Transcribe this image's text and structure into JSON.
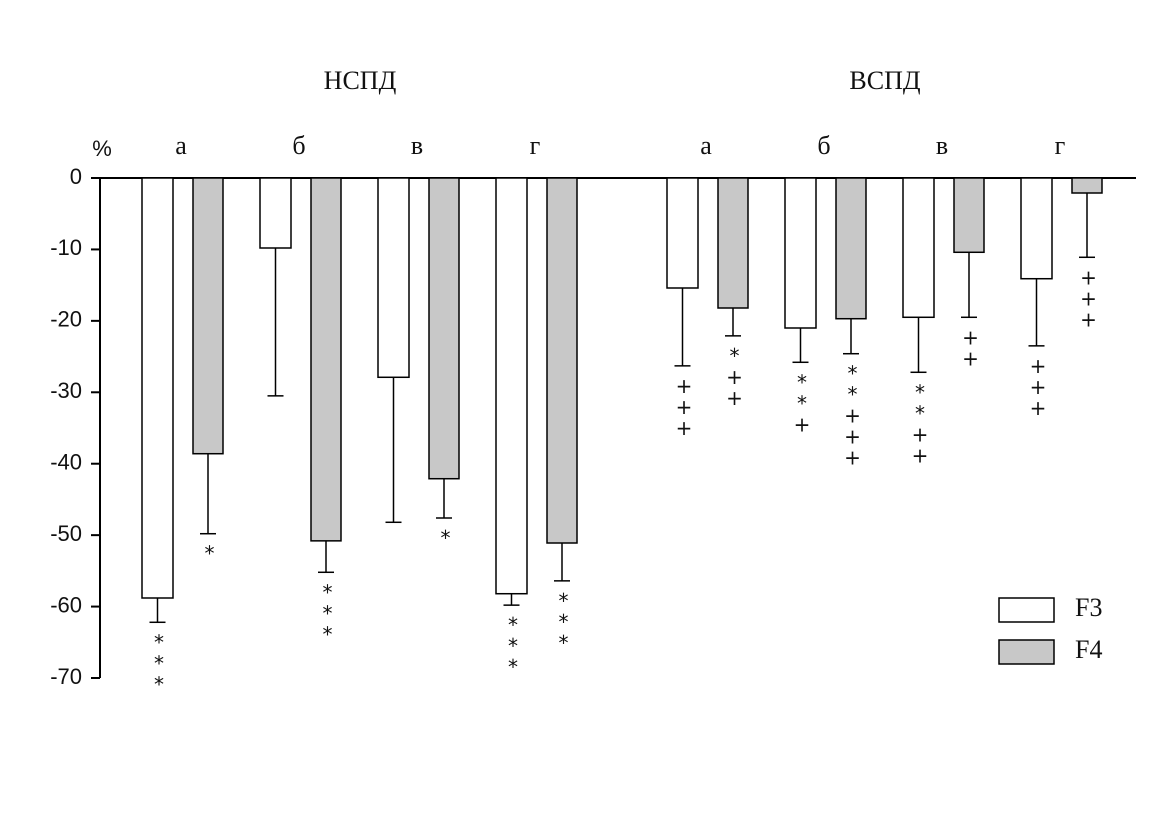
{
  "chart_data": {
    "type": "bar",
    "group_labels": [
      "НСПД",
      "ВСПД"
    ],
    "categories": [
      "а",
      "б",
      "в",
      "г",
      "а",
      "б",
      "в",
      "г"
    ],
    "y_label": "%",
    "ylim": [
      -70,
      0
    ],
    "yticks": [
      0,
      -10,
      -20,
      -30,
      -40,
      -50,
      -60,
      -70
    ],
    "legend": "bottom-right",
    "series": [
      {
        "name": "F3",
        "color": "#ffffff",
        "values": [
          -58.8,
          -9.8,
          -27.9,
          -58.2,
          -15.4,
          -21.0,
          -19.5,
          -14.1
        ],
        "errors": [
          3.4,
          20.7,
          20.3,
          1.6,
          10.9,
          4.8,
          7.7,
          9.4
        ],
        "annotations": [
          "***",
          null,
          null,
          "***",
          "+++",
          "**+",
          "**++",
          "+++"
        ]
      },
      {
        "name": "F4",
        "color": "#c8c8c8",
        "values": [
          -38.6,
          -50.8,
          -42.1,
          -51.1,
          -18.2,
          -19.7,
          -10.4,
          -2.1
        ],
        "errors": [
          11.2,
          4.4,
          5.5,
          5.3,
          3.9,
          4.9,
          9.1,
          9.0
        ],
        "annotations": [
          "*",
          "***",
          "*",
          "***",
          "*++",
          "**+++",
          "++",
          "+++"
        ]
      }
    ]
  }
}
